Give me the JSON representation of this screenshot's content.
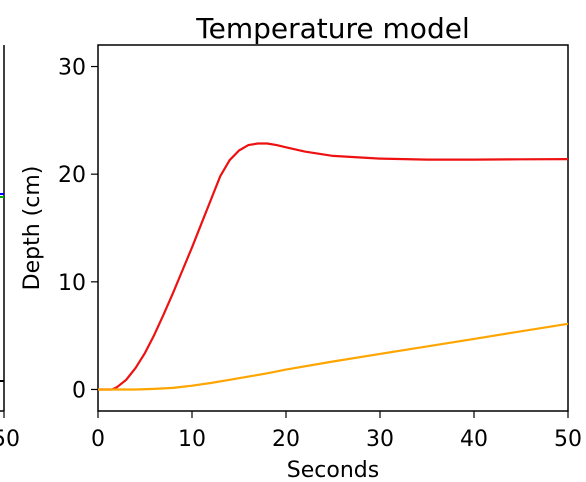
{
  "chart_data": [
    {
      "type": "line",
      "title": "",
      "partially_visible": true,
      "x_tick_labels": [
        "50"
      ],
      "series": [
        {
          "color": "#0000ff"
        },
        {
          "color": "#00aa00"
        },
        {
          "color": "#000000"
        }
      ]
    },
    {
      "type": "line",
      "title": "Temperature model",
      "xlabel": "Seconds",
      "ylabel": "Depth (cm)",
      "xlim": [
        0,
        50
      ],
      "ylim": [
        -2,
        32
      ],
      "x_ticks": [
        0,
        10,
        20,
        30,
        40,
        50
      ],
      "y_ticks": [
        0,
        10,
        20,
        30
      ],
      "grid": false,
      "series": [
        {
          "color": "#ee1111",
          "x": [
            0,
            1.5,
            2,
            3,
            4,
            5,
            6,
            7,
            8,
            9,
            10,
            11,
            12,
            13,
            14,
            15,
            16,
            17,
            18,
            19,
            20,
            22,
            25,
            30,
            35,
            40,
            45,
            50
          ],
          "y": [
            0,
            0,
            0.2,
            0.9,
            2.0,
            3.4,
            5.1,
            7.0,
            9.0,
            11.1,
            13.2,
            15.4,
            17.6,
            19.8,
            21.3,
            22.2,
            22.7,
            22.85,
            22.85,
            22.7,
            22.5,
            22.1,
            21.7,
            21.45,
            21.35,
            21.35,
            21.38,
            21.4
          ]
        },
        {
          "color": "#ffa500",
          "x": [
            0,
            2,
            4,
            6,
            8,
            10,
            12,
            14,
            16,
            18,
            20,
            25,
            30,
            35,
            40,
            45,
            50
          ],
          "y": [
            0,
            0,
            0,
            0.05,
            0.15,
            0.35,
            0.6,
            0.9,
            1.2,
            1.5,
            1.85,
            2.6,
            3.3,
            4.0,
            4.7,
            5.4,
            6.1
          ]
        }
      ]
    }
  ]
}
